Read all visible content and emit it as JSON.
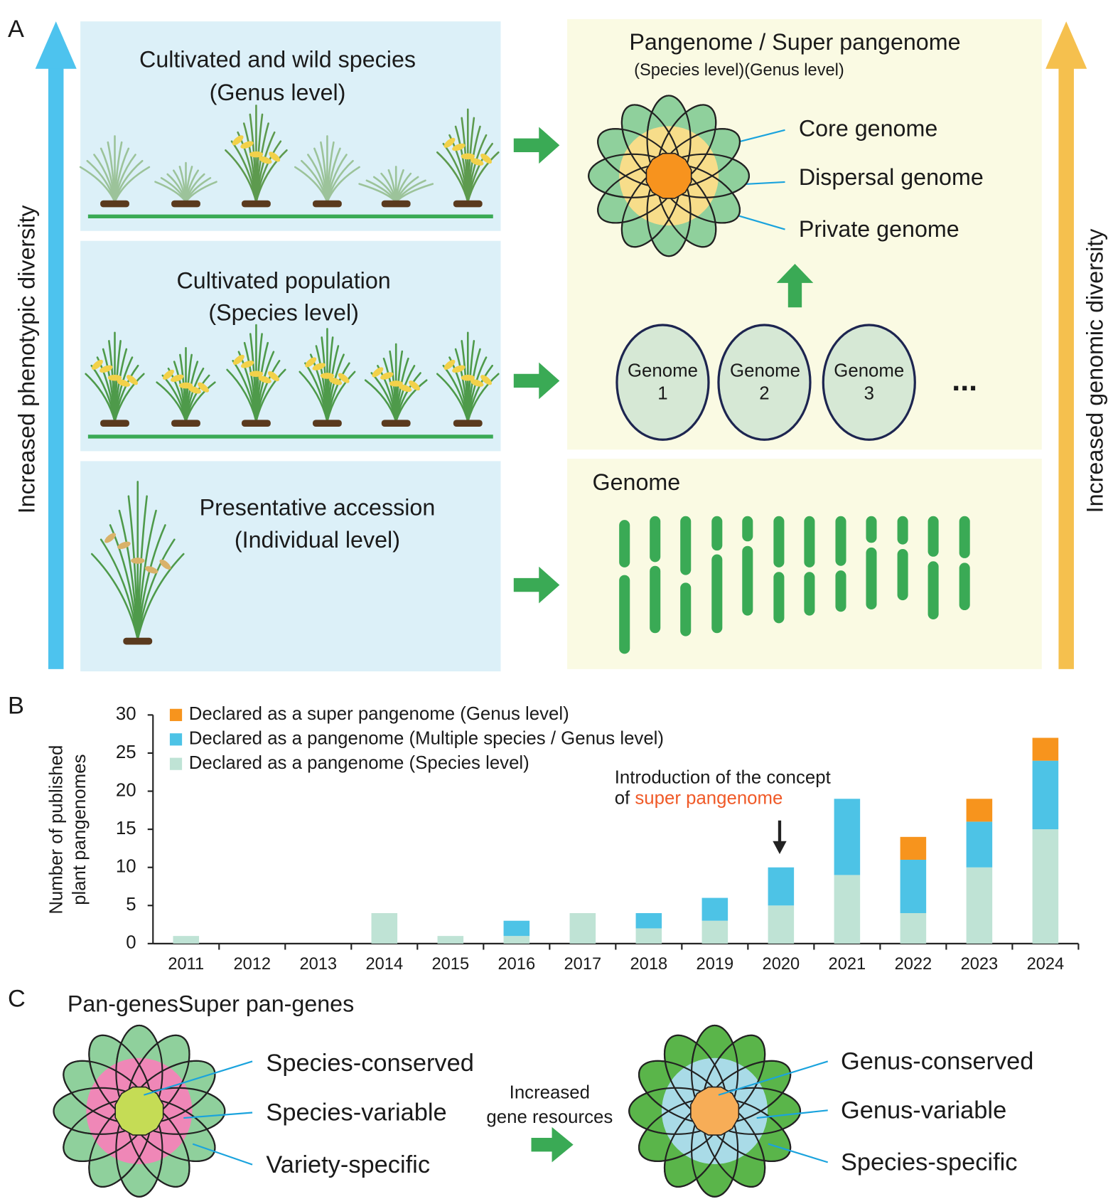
{
  "panel_labels": [
    "A",
    "B",
    "C"
  ],
  "panel_a": {
    "left_axis_label": "Increased phenotypic diversity",
    "right_axis_label": "Increased genomic diversity",
    "boxes": [
      {
        "lines": [
          "Cultivated and wild species",
          "(Genus level)"
        ]
      },
      {
        "lines": [
          "Cultivated population",
          "(Species level)"
        ]
      },
      {
        "lines": [
          "Presentative accession",
          "(Individual level)"
        ]
      }
    ],
    "pangenome": {
      "title": "Pangenome / Super pangenome",
      "subtitle": "(Species level)(Genus level)",
      "parts": [
        "Core genome",
        "Dispersal genome",
        "Private genome"
      ]
    },
    "genomes": [
      {
        "label": "Genome",
        "number": "1"
      },
      {
        "label": "Genome",
        "number": "2"
      },
      {
        "label": "Genome",
        "number": "3"
      }
    ],
    "ellipsis": "...",
    "genome_title": "Genome"
  },
  "chart_data": {
    "type": "stacked_bar",
    "ylabel": [
      "Number of published",
      "plant pangenomes"
    ],
    "categories": [
      "2011",
      "2012",
      "2013",
      "2014",
      "2015",
      "2016",
      "2017",
      "2018",
      "2019",
      "2020",
      "2021",
      "2022",
      "2023",
      "2024"
    ],
    "series": [
      {
        "name": "Declared as a pangenome (Species level)",
        "color": "#bfe3d5",
        "values": [
          1,
          0,
          0,
          4,
          1,
          1,
          4,
          2,
          3,
          5,
          9,
          4,
          10,
          15
        ]
      },
      {
        "name": "Declared as a pangenome (Multiple species / Genus level)",
        "color": "#4dc3e6",
        "values": [
          0,
          0,
          0,
          0,
          0,
          2,
          0,
          2,
          3,
          5,
          10,
          7,
          6,
          9
        ]
      },
      {
        "name": "Declared as a super pangenome (Genus level)",
        "color": "#f7941d",
        "values": [
          0,
          0,
          0,
          0,
          0,
          0,
          0,
          0,
          0,
          0,
          0,
          3,
          3,
          3
        ]
      }
    ],
    "ylim": [
      0,
      30
    ],
    "yticks": [
      0,
      5,
      10,
      15,
      20,
      25,
      30
    ],
    "legend": "top-left",
    "annotation": {
      "lines": [
        "Introduction of the concept",
        "of"
      ],
      "highlight": "super pangenome"
    }
  },
  "panel_c": {
    "title": "Pan-genesSuper pan-genes",
    "left_parts": [
      "Species-conserved",
      "Species-variable",
      "Variety-specific"
    ],
    "middle_lines": [
      "Increased",
      "gene resources"
    ],
    "right_parts": [
      "Genus-conserved",
      "Genus-variable",
      "Species-specific"
    ]
  }
}
